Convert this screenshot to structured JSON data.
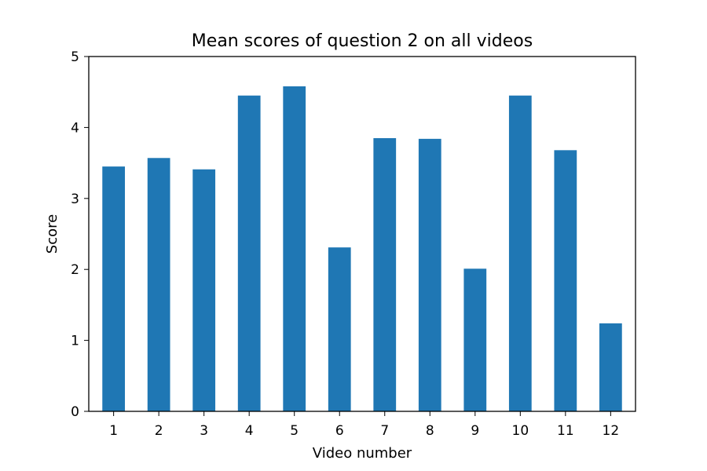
{
  "chart_data": {
    "type": "bar",
    "title": "Mean scores of question 2 on all videos",
    "xlabel": "Video number",
    "ylabel": "Score",
    "categories": [
      "1",
      "2",
      "3",
      "4",
      "5",
      "6",
      "7",
      "8",
      "9",
      "10",
      "11",
      "12"
    ],
    "values": [
      3.45,
      3.57,
      3.41,
      4.45,
      4.58,
      2.31,
      3.85,
      3.84,
      2.01,
      4.45,
      3.68,
      1.24
    ],
    "ylim": [
      0,
      5
    ],
    "yticks": [
      "0",
      "1",
      "2",
      "3",
      "4",
      "5"
    ],
    "grid": false,
    "legend": "none",
    "bar_color": "#1f77b4"
  }
}
